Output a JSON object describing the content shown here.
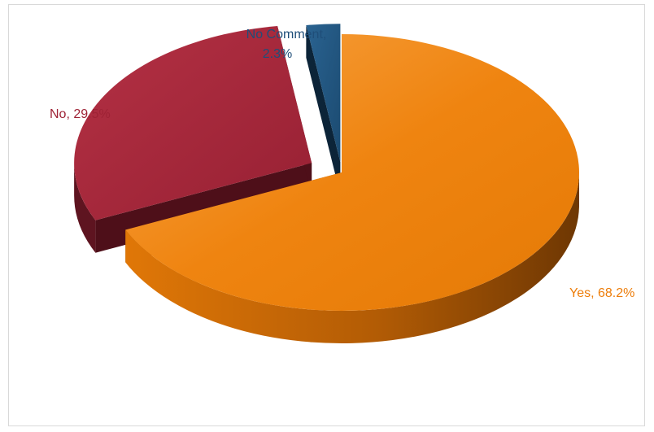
{
  "chart_data": {
    "type": "pie",
    "style": "3d-exploded",
    "title": "",
    "slices": [
      {
        "category": "Yes",
        "value": 68.2,
        "display": "68.2%",
        "color": "#ED7D0A"
      },
      {
        "category": "No",
        "value": 29.5,
        "display": "29.5%",
        "color": "#9E2235"
      },
      {
        "category": "No Comment",
        "value": 2.3,
        "display": "2.3%",
        "color": "#1F5077"
      }
    ],
    "labels": {
      "yes": {
        "name": "Yes",
        "pct": "68.2%"
      },
      "no": {
        "name": "No",
        "pct": "29.5%"
      },
      "nocomment": {
        "name": "No Comment",
        "pct": "2.3%"
      }
    },
    "legend": "none",
    "data_labels": "outside-end"
  }
}
